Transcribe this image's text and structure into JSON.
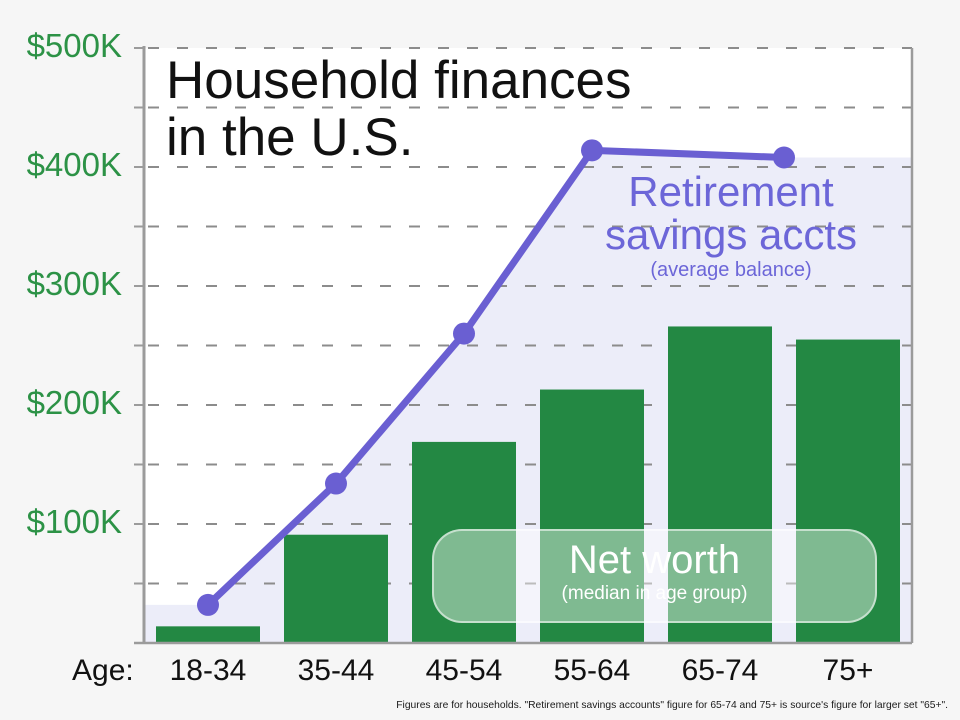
{
  "title": {
    "line1": "Household finances",
    "line2": "in the U.S."
  },
  "labels": {
    "retirement": {
      "line1": "Retirement",
      "line2": "savings accts",
      "sub": "(average balance)"
    },
    "net_worth": {
      "main": "Net worth",
      "sub": "(median in age group)"
    }
  },
  "x_axis": {
    "prefix": "Age:"
  },
  "footnote": "Figures are for households. \"Retirement savings accounts\" figure for 65-74 and 75+ is source's figure for larger set \"65+\".",
  "colors": {
    "bar_green": "#238843",
    "axis_label_green": "#2c9246",
    "line_purple": "#6a5fd2",
    "text_purple": "#6c66d8",
    "area_lavender": "#ecedf9",
    "grid_gray": "#8c8c8c",
    "axis_gray": "#9b9b9b",
    "plot_background": "#ffffff",
    "page_background": "#f6f6f6",
    "badge_fill": "rgba(255,255,255,0.42)"
  },
  "chart_data": {
    "type": "bar + line combo",
    "title": "Household finances in the U.S.",
    "categories": [
      "18-34",
      "35-44",
      "45-54",
      "55-64",
      "65-74",
      "75+"
    ],
    "x_axis_prefix": "Age:",
    "y_axis": {
      "min_k": 0,
      "max_k": 500,
      "ticks": [
        {
          "label": "$500K",
          "value_k": 500
        },
        {
          "label": "$400K",
          "value_k": 400
        },
        {
          "label": "$300K",
          "value_k": 300
        },
        {
          "label": "$200K",
          "value_k": 200
        },
        {
          "label": "$100K",
          "value_k": 100
        }
      ],
      "minor_grid_step_k": 50,
      "grid_style": "dashed horizontal gridlines every $50K"
    },
    "series": [
      {
        "name": "Net worth",
        "subtitle": "(median in age group)",
        "type": "bar",
        "values_k": [
          14,
          91,
          169,
          213,
          266,
          255
        ]
      },
      {
        "name": "Retirement savings accts",
        "subtitle": "(average balance)",
        "type": "line",
        "values_k": [
          32,
          134,
          260,
          414,
          408
        ],
        "point_categories": [
          "18-34",
          "35-44",
          "45-54",
          "55-64",
          "65+"
        ],
        "note": "Last point covers 65+ and is plotted midway between the 65-74 and 75+ columns; area under line filled lavender to chart edges."
      }
    ],
    "legend_position": "labels drawn inside plot area",
    "footnote": "Figures are for households. \"Retirement savings accounts\" figure for 65-74 and 75+ is source's figure for larger set \"65+\"."
  }
}
